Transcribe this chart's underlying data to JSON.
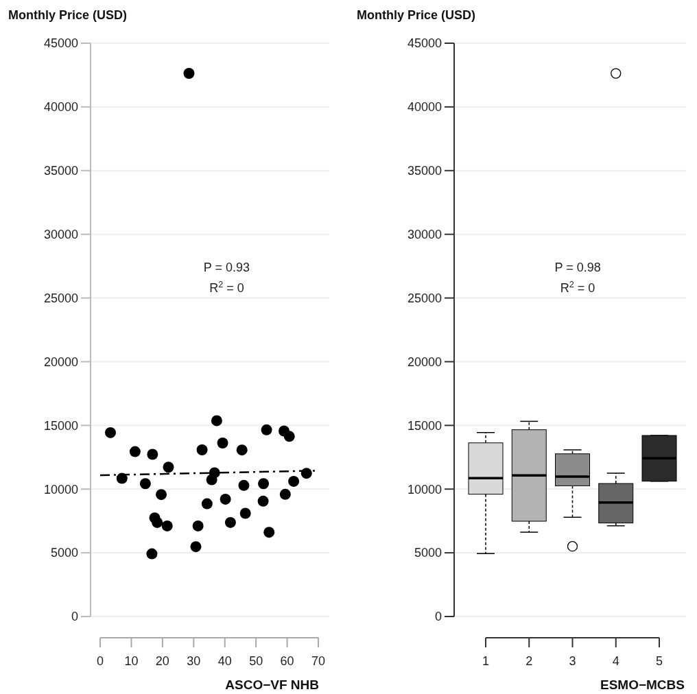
{
  "chart_data": [
    {
      "type": "scatter",
      "ylabel": "Monthly Price (USD)",
      "xlabel": "ASCO−VF NHB",
      "xlim": [
        0,
        70
      ],
      "xticks": [
        0,
        10,
        20,
        30,
        40,
        50,
        60,
        70
      ],
      "ylim": [
        0,
        45000
      ],
      "yticks": [
        0,
        5000,
        10000,
        15000,
        20000,
        25000,
        30000,
        35000,
        40000,
        45000
      ],
      "grid": "y",
      "annotations": [
        "P = 0.93",
        "R$^{2}$ = 0"
      ],
      "series": [
        {
          "type": "scatter",
          "marker": "circle",
          "color": "#000000",
          "x": [
            3.3,
            11.2,
            16.8,
            21.9,
            7.0,
            14.5,
            19.6,
            17.5,
            18.3,
            21.5,
            16.6,
            37.4,
            32.7,
            39.3,
            45.5,
            36.7,
            35.8,
            46.1,
            34.3,
            40.2,
            31.4,
            30.7,
            41.8,
            46.6,
            53.4,
            59.0,
            60.7,
            52.4,
            52.3,
            54.2,
            62.1,
            59.4,
            66.2,
            28.5
          ],
          "values": [
            14430,
            12940,
            12730,
            11720,
            10840,
            10430,
            9570,
            7740,
            7380,
            7110,
            4920,
            15370,
            13080,
            13620,
            13070,
            11280,
            10740,
            10290,
            8850,
            9210,
            7110,
            5480,
            7380,
            8100,
            14650,
            14560,
            14140,
            10430,
            9050,
            6610,
            10610,
            9590,
            11240,
            42630
          ]
        },
        {
          "type": "line",
          "color": "#000000",
          "line_style": "dashed",
          "x": [
            0,
            70
          ],
          "values": [
            11090,
            11450
          ]
        }
      ]
    },
    {
      "type": "box",
      "ylabel": "Monthly Price (USD)",
      "xlabel": "ESMO−MCBS",
      "categories": [
        "1",
        "2",
        "3",
        "4",
        "5"
      ],
      "ylim": [
        0,
        45000
      ],
      "yticks": [
        0,
        5000,
        10000,
        15000,
        20000,
        25000,
        30000,
        35000,
        40000,
        45000
      ],
      "grid": "y",
      "annotations": [
        "P = 0.98",
        "R$^{2}$ = 0"
      ],
      "colors": [
        "#d9d9d9",
        "#b3b3b3",
        "#8c8c8c",
        "#666666",
        "#2b2b2b"
      ],
      "boxes": [
        {
          "low": 4940,
          "q1": 9600,
          "median": 10860,
          "q3": 13630,
          "high": 14440
        },
        {
          "low": 6620,
          "q1": 7480,
          "median": 11070,
          "q3": 14660,
          "high": 15320
        },
        {
          "low": 7790,
          "q1": 10260,
          "median": 10980,
          "q3": 12770,
          "high": 13080,
          "outliers": [
            5510
          ]
        },
        {
          "low": 7120,
          "q1": 7340,
          "median": 8950,
          "q3": 10440,
          "high": 11250,
          "outliers": [
            42630
          ]
        },
        {
          "low": 10620,
          "q1": 10620,
          "median": 12420,
          "q3": 14210,
          "high": 14210
        }
      ]
    }
  ]
}
